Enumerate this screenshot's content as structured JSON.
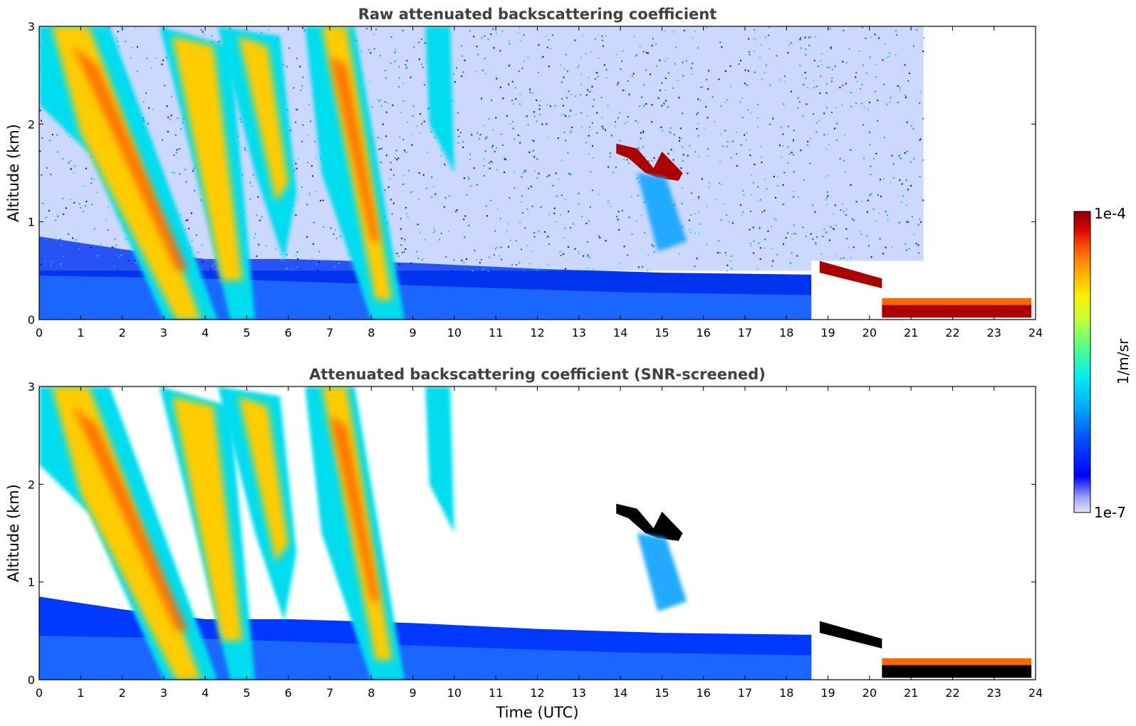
{
  "chart_data": [
    {
      "type": "heatmap",
      "title": "Raw attenuated backscattering coefficient",
      "xlabel": "",
      "ylabel": "Altitude (km)",
      "xlim": [
        0,
        24
      ],
      "ylim": [
        0,
        3
      ],
      "xticks": [
        "0",
        "1",
        "2",
        "3",
        "4",
        "5",
        "6",
        "7",
        "8",
        "9",
        "10",
        "11",
        "12",
        "13",
        "14",
        "15",
        "16",
        "17",
        "18",
        "19",
        "20",
        "21",
        "22",
        "23",
        "24"
      ],
      "yticks": [
        "0",
        "1",
        "2",
        "3"
      ],
      "screened": false
    },
    {
      "type": "heatmap",
      "title": "Attenuated backscattering coefficient (SNR-screened)",
      "xlabel": "Time (UTC)",
      "ylabel": "Altitude (km)",
      "xlim": [
        0,
        24
      ],
      "ylim": [
        0,
        3
      ],
      "xticks": [
        "0",
        "1",
        "2",
        "3",
        "4",
        "5",
        "6",
        "7",
        "8",
        "9",
        "10",
        "11",
        "12",
        "13",
        "14",
        "15",
        "16",
        "17",
        "18",
        "19",
        "20",
        "21",
        "22",
        "23",
        "24"
      ],
      "yticks": [
        "0",
        "1",
        "2",
        "3"
      ],
      "screened": true
    }
  ],
  "colorbar": {
    "label": "1/m/sr",
    "max_label": "1e-4",
    "min_label": "1e-7",
    "scale": "log",
    "range": [
      1e-07,
      0.0001
    ],
    "colormap": [
      "#e8e8f8",
      "#9aa0ff",
      "#0000ff",
      "#0055ff",
      "#00aaff",
      "#00eeee",
      "#55ff88",
      "#ccff33",
      "#ffee00",
      "#ffaa00",
      "#ff5500",
      "#dd0000",
      "#880000"
    ]
  }
}
